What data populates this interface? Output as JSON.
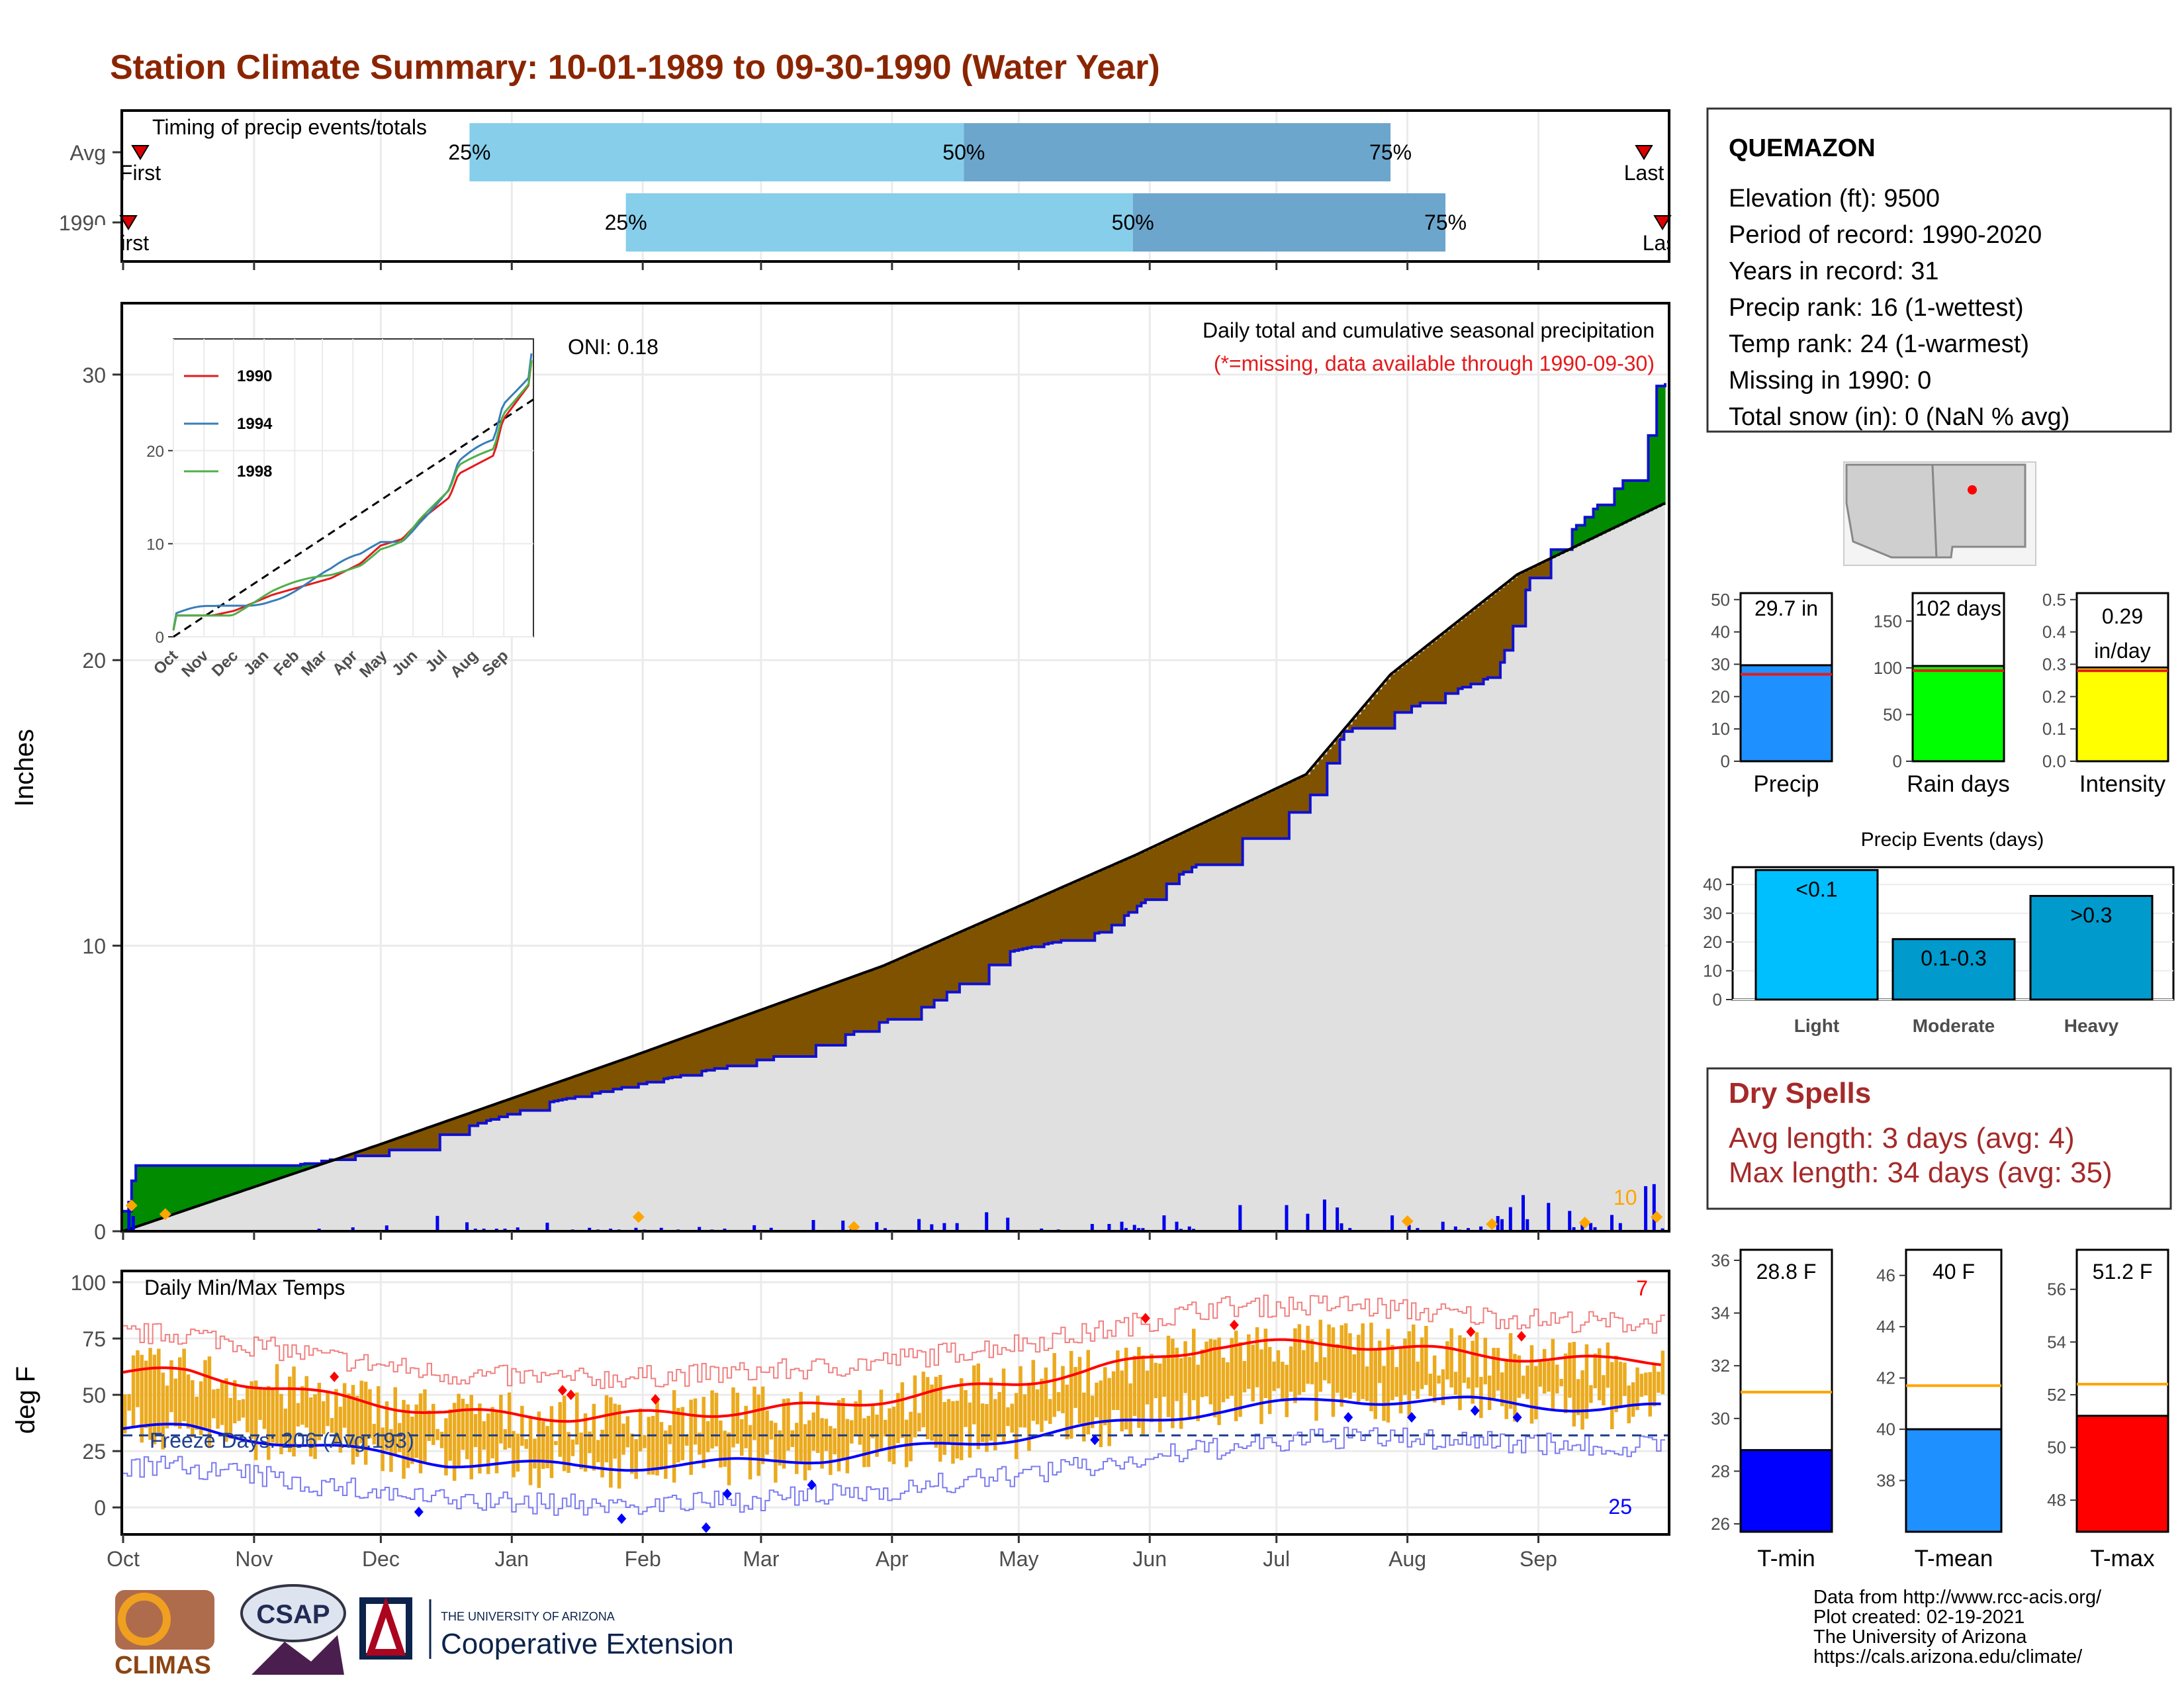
{
  "title": "Station Climate Summary: 10-01-1989 to 09-30-1990 (Water Year)",
  "colors": {
    "title": "#8B2500",
    "light_blue": "#87CEEB",
    "mid_blue": "#6CA6CD",
    "deficit": "#7F5200",
    "surplus": "#008B00",
    "precip_bar": "#1E90FF",
    "rain_bar": "#00FF00",
    "intensity_bar": "#FFFF00",
    "avg_line": "#E41A1C",
    "event_bar": "#00BFFF",
    "temp_bar": "#EBAA1E",
    "tmin_bar": "#0000FF",
    "tmean_bar": "#1E90FF",
    "tmax_bar": "#FF0000",
    "avg_orange": "#FFA500",
    "dry_text": "#A52A2A"
  },
  "chart_data": [
    {
      "id": "timing",
      "type": "bar",
      "title": "Timing of precip events/totals",
      "rows": [
        {
          "label": "Avg",
          "first": "10-01",
          "p25": "12-22",
          "p50": "04-18",
          "p75": "07-28",
          "last": "09-30"
        },
        {
          "label": "1990",
          "first": "10-01",
          "p25": "01-28",
          "p50": "05-28",
          "p75": "08-10",
          "last": "09-30"
        }
      ],
      "marker_labels": {
        "first": "First",
        "last": "Last",
        "p25": "25%",
        "p50": "50%",
        "p75": "75%"
      }
    },
    {
      "id": "cumulative",
      "type": "area",
      "ylabel": "Inches",
      "ylim": [
        0,
        32.5
      ],
      "yticks": [
        0,
        10,
        20,
        30
      ],
      "months": [
        "Oct",
        "Nov",
        "Dec",
        "Jan",
        "Feb",
        "Mar",
        "Apr",
        "May",
        "Jun",
        "Jul",
        "Aug",
        "Sep"
      ],
      "annotation_title": "Daily total and cumulative seasonal precipitation",
      "annotation_missing": "(*=missing, data available through 1990-09-30)",
      "oni": "ONI: 0.18",
      "extreme_count": "10",
      "series": [
        {
          "name": "observed cumulative",
          "x_days": [
            0,
            3,
            40,
            62,
            100,
            160,
            190,
            210,
            232,
            250,
            280,
            289,
            325,
            334,
            360,
            363,
            364
          ],
          "y": [
            0.7,
            2.3,
            2.3,
            2.8,
            4.5,
            6.3,
            7.9,
            9.8,
            10.5,
            12.5,
            15.0,
            17.5,
            19.5,
            23.3,
            27.0,
            29.6,
            29.7
          ]
        },
        {
          "name": "average cumulative",
          "x_days": [
            0,
            60,
            120,
            180,
            240,
            270,
            280,
            300,
            330,
            365
          ],
          "y": [
            0,
            3.0,
            6.1,
            9.3,
            13.2,
            15.3,
            16.0,
            19.5,
            23.0,
            25.5
          ]
        }
      ],
      "daily_note": "daily precipitation bars along the x axis, up to ~1.6 in"
    },
    {
      "id": "inset",
      "type": "line",
      "legend": [
        "1990",
        "1994",
        "1998"
      ],
      "ylim": [
        0,
        32
      ],
      "yticks": [
        0,
        10,
        20
      ],
      "months": [
        "Oct",
        "Nov",
        "Dec",
        "Jan",
        "Feb",
        "Mar",
        "Apr",
        "May",
        "Jun",
        "Jul",
        "Aug",
        "Sep"
      ]
    },
    {
      "id": "temps",
      "type": "bar",
      "title": "Daily Min/Max Temps",
      "ylabel": "deg F",
      "ylim": [
        -12,
        105
      ],
      "yticks": [
        0,
        25,
        50,
        75,
        100
      ],
      "freeze_label": "Freeze Days: 206 (Avg:193)",
      "freeze_line": 32,
      "hot_count": "7",
      "cold_count": "25",
      "months": [
        "Oct",
        "Nov",
        "Dec",
        "Jan",
        "Feb",
        "Mar",
        "Apr",
        "May",
        "Jun",
        "Jul",
        "Aug",
        "Sep"
      ],
      "avg_max_monthly": [
        60,
        50,
        42,
        40,
        42,
        45,
        52,
        60,
        72,
        73,
        68,
        65
      ],
      "avg_min_monthly": [
        35,
        27,
        20,
        18,
        19,
        22,
        28,
        35,
        43,
        48,
        47,
        44
      ]
    },
    {
      "id": "summary_precip",
      "type": "bar",
      "panels": [
        {
          "label": "Precip",
          "value": 29.7,
          "value_text": "29.7 in",
          "avg": 26.9,
          "ylim": [
            0,
            52
          ],
          "yticks": [
            0,
            10,
            20,
            30,
            40,
            50
          ]
        },
        {
          "label": "Rain days",
          "value": 102,
          "value_text": "102 days",
          "avg": 97,
          "ylim": [
            0,
            180
          ],
          "yticks": [
            0,
            50,
            100,
            150
          ]
        },
        {
          "label": "Intensity",
          "value": 0.29,
          "value_text": "0.29\nin/day",
          "value_text_1": "0.29",
          "value_text_2": "in/day",
          "avg": 0.28,
          "ylim": [
            0,
            0.52
          ],
          "yticks": [
            0.0,
            0.1,
            0.2,
            0.3,
            0.4,
            0.5
          ]
        }
      ]
    },
    {
      "id": "events",
      "type": "bar",
      "title": "Precip Events (days)",
      "categories": [
        "Light",
        "Moderate",
        "Heavy"
      ],
      "bar_labels": [
        "<0.1",
        "0.1-0.3",
        ">0.3"
      ],
      "values": [
        45,
        21,
        36
      ],
      "ylim": [
        0,
        46
      ],
      "yticks": [
        0,
        10,
        20,
        30,
        40
      ]
    },
    {
      "id": "summary_temps",
      "type": "bar",
      "panels": [
        {
          "label": "T-min",
          "value": 28.8,
          "value_text": "28.8 F",
          "avg": 31.0,
          "ylim": [
            25.7,
            36.4
          ],
          "yticks": [
            26,
            28,
            30,
            32,
            34,
            36
          ]
        },
        {
          "label": "T-mean",
          "value": 40,
          "value_text": "40 F",
          "avg": 41.7,
          "ylim": [
            36.0,
            47.0
          ],
          "yticks": [
            38,
            40,
            42,
            44,
            46
          ]
        },
        {
          "label": "T-max",
          "value": 51.2,
          "value_text": "51.2 F",
          "avg": 52.4,
          "ylim": [
            46.8,
            57.5
          ],
          "yticks": [
            48,
            50,
            52,
            54,
            56
          ]
        }
      ]
    }
  ],
  "station": {
    "name": "QUEMAZON",
    "lines": [
      "Elevation (ft): 9500",
      "Period of record: 1990-2020",
      "Years in record: 31",
      "Precip rank: 16 (1-wettest)",
      "Temp rank: 24 (1-warmest)",
      "Missing in 1990: 0",
      "Total snow (in): 0 (NaN % avg)"
    ]
  },
  "dry_spells": {
    "title": "Dry Spells",
    "avg": "Avg length: 3 days (avg: 4)",
    "max": "Max length: 34 days (avg: 35)"
  },
  "footer": {
    "credits": [
      "Data from http://www.rcc-acis.org/",
      "Plot created: 02-19-2021",
      "The University of Arizona",
      "https://cals.arizona.edu/climate/"
    ],
    "climas": "CLIMAS",
    "csap": "CSAP",
    "ua_small": "THE UNIVERSITY OF ARIZONA",
    "ua_big": "Cooperative Extension"
  }
}
